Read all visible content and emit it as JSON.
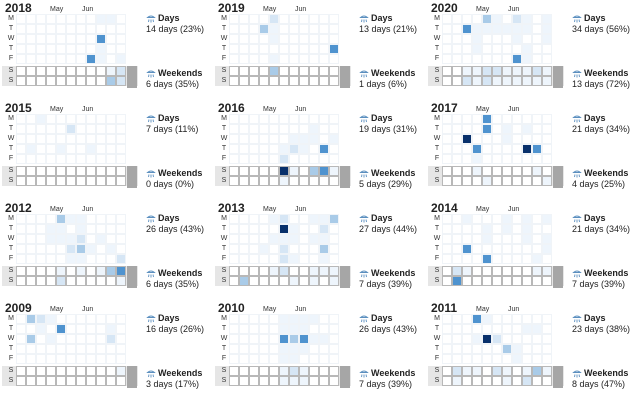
{
  "colors": {
    "empty": "#ffffff",
    "border_weekday": "#f0f4f8",
    "border_weekend": "#b8b8b8",
    "weekend_band": "#e6e6e6",
    "weekend_cap": "#a6a6a6",
    "scale": [
      "#ffffff",
      "#eef5fc",
      "#d6e6f5",
      "#a9cbe8",
      "#4f93cf",
      "#08306b"
    ]
  },
  "labels": {
    "weekday_letters": [
      "M",
      "T",
      "W",
      "T",
      "F"
    ],
    "weekend_letters": [
      "S",
      "S"
    ],
    "months": [
      "May",
      "Jun"
    ],
    "days_title": "Days",
    "weekends_title": "Weekends"
  },
  "chart_data": [
    {
      "type": "heatmap",
      "title": "2018",
      "days_text": "14 days (23%)",
      "weekends_text": "6 days (35%)",
      "weekday_cells": [
        [
          0,
          0,
          0,
          0,
          0,
          0,
          0,
          0,
          1,
          1,
          0
        ],
        [
          0,
          0,
          0,
          0,
          0,
          0,
          0,
          0,
          0,
          0,
          0
        ],
        [
          0,
          0,
          0,
          0,
          0,
          0,
          0,
          0,
          4,
          0,
          0
        ],
        [
          0,
          0,
          0,
          0,
          0,
          0,
          0,
          0,
          1,
          0,
          0
        ],
        [
          0,
          0,
          0,
          0,
          0,
          0,
          0,
          4,
          1,
          0,
          1
        ]
      ],
      "weekend_cells": [
        [
          0,
          0,
          0,
          0,
          0,
          0,
          0,
          0,
          0,
          1,
          2
        ],
        [
          0,
          0,
          0,
          0,
          0,
          0,
          0,
          0,
          0,
          3,
          2
        ]
      ]
    },
    {
      "type": "heatmap",
      "title": "2019",
      "days_text": "13 days (21%)",
      "weekends_text": "1 days (6%)",
      "weekday_cells": [
        [
          0,
          0,
          0,
          0,
          2,
          0,
          0,
          0,
          0,
          0,
          0
        ],
        [
          0,
          0,
          0,
          3,
          1,
          0,
          0,
          0,
          0,
          0,
          0
        ],
        [
          0,
          0,
          0,
          0,
          1,
          0,
          0,
          0,
          0,
          0,
          0
        ],
        [
          0,
          0,
          0,
          0,
          0,
          0,
          0,
          0,
          0,
          0,
          4
        ],
        [
          0,
          0,
          0,
          0,
          1,
          0,
          0,
          0,
          0,
          0,
          0
        ]
      ],
      "weekend_cells": [
        [
          0,
          0,
          0,
          0,
          3,
          0,
          0,
          0,
          0,
          0,
          0
        ],
        [
          0,
          0,
          0,
          0,
          0,
          0,
          0,
          0,
          0,
          0,
          0
        ]
      ]
    },
    {
      "type": "heatmap",
      "title": "2020",
      "days_text": "34 days (56%)",
      "weekends_text": "13 days (72%)",
      "weekday_cells": [
        [
          0,
          0,
          0,
          0,
          3,
          1,
          0,
          2,
          1,
          0,
          1
        ],
        [
          0,
          0,
          4,
          1,
          1,
          1,
          1,
          1,
          1,
          0,
          1
        ],
        [
          0,
          0,
          0,
          1,
          0,
          0,
          0,
          1,
          0,
          0,
          1
        ],
        [
          0,
          0,
          0,
          1,
          0,
          0,
          0,
          0,
          1,
          0,
          0
        ],
        [
          0,
          0,
          0,
          0,
          0,
          0,
          0,
          4,
          1,
          0,
          0
        ]
      ],
      "weekend_cells": [
        [
          0,
          0,
          1,
          1,
          2,
          2,
          1,
          1,
          1,
          2,
          1
        ],
        [
          0,
          0,
          2,
          1,
          2,
          1,
          1,
          1,
          1,
          1,
          1
        ]
      ]
    },
    {
      "type": "heatmap",
      "title": "2015",
      "days_text": "7 days (11%)",
      "weekends_text": "0 days (0%)",
      "weekday_cells": [
        [
          0,
          0,
          1,
          0,
          0,
          0,
          0,
          0,
          0,
          0,
          0
        ],
        [
          0,
          0,
          0,
          0,
          0,
          2,
          0,
          0,
          0,
          0,
          0
        ],
        [
          0,
          0,
          0,
          0,
          0,
          0,
          0,
          0,
          0,
          0,
          0
        ],
        [
          0,
          1,
          0,
          0,
          1,
          0,
          0,
          1,
          0,
          0,
          0
        ],
        [
          0,
          0,
          0,
          0,
          0,
          0,
          0,
          0,
          0,
          0,
          0
        ]
      ],
      "weekend_cells": [
        [
          0,
          0,
          0,
          0,
          0,
          0,
          0,
          0,
          0,
          0,
          0
        ],
        [
          0,
          0,
          0,
          0,
          0,
          0,
          0,
          0,
          0,
          0,
          0
        ]
      ]
    },
    {
      "type": "heatmap",
      "title": "2016",
      "days_text": "19 days (31%)",
      "weekends_text": "5 days (29%)",
      "weekday_cells": [
        [
          0,
          0,
          0,
          0,
          0,
          0,
          0,
          0,
          0,
          0,
          0
        ],
        [
          0,
          0,
          0,
          0,
          0,
          0,
          0,
          0,
          1,
          0,
          0
        ],
        [
          0,
          0,
          0,
          0,
          0,
          0,
          1,
          1,
          1,
          0,
          1
        ],
        [
          0,
          0,
          0,
          0,
          0,
          1,
          2,
          1,
          0,
          4,
          0
        ],
        [
          0,
          0,
          0,
          0,
          0,
          2,
          0,
          0,
          0,
          0,
          0
        ]
      ],
      "weekend_cells": [
        [
          0,
          0,
          0,
          0,
          0,
          5,
          1,
          0,
          3,
          4,
          1
        ],
        [
          0,
          0,
          0,
          0,
          0,
          1,
          0,
          0,
          0,
          0,
          0
        ]
      ]
    },
    {
      "type": "heatmap",
      "title": "2017",
      "days_text": "21 days (34%)",
      "weekends_text": "4 days (25%)",
      "weekday_cells": [
        [
          0,
          0,
          0,
          0,
          4,
          0,
          0,
          0,
          0,
          0,
          0
        ],
        [
          0,
          0,
          0,
          0,
          4,
          0,
          1,
          0,
          1,
          0,
          0
        ],
        [
          0,
          0,
          5,
          0,
          0,
          0,
          1,
          0,
          0,
          0,
          0
        ],
        [
          0,
          0,
          0,
          4,
          0,
          0,
          0,
          0,
          5,
          4,
          0
        ],
        [
          0,
          0,
          0,
          1,
          0,
          0,
          0,
          0,
          0,
          0,
          0
        ]
      ],
      "weekend_cells": [
        [
          0,
          0,
          0,
          1,
          0,
          0,
          0,
          0,
          0,
          1,
          0
        ],
        [
          0,
          0,
          0,
          0,
          1,
          0,
          0,
          0,
          0,
          0,
          1
        ]
      ]
    },
    {
      "type": "heatmap",
      "title": "2012",
      "days_text": "26 days (43%)",
      "weekends_text": "6 days (35%)",
      "weekday_cells": [
        [
          0,
          0,
          0,
          0,
          3,
          1,
          1,
          0,
          0,
          0,
          0
        ],
        [
          0,
          0,
          0,
          1,
          1,
          0,
          1,
          0,
          0,
          0,
          0
        ],
        [
          0,
          0,
          0,
          1,
          1,
          1,
          2,
          0,
          1,
          0,
          0
        ],
        [
          0,
          0,
          0,
          0,
          0,
          2,
          3,
          1,
          0,
          1,
          0
        ],
        [
          0,
          0,
          0,
          0,
          0,
          1,
          1,
          0,
          0,
          0,
          2
        ]
      ],
      "weekend_cells": [
        [
          0,
          0,
          0,
          0,
          1,
          0,
          1,
          0,
          1,
          3,
          4
        ],
        [
          0,
          0,
          0,
          0,
          2,
          0,
          0,
          0,
          0,
          0,
          1
        ]
      ]
    },
    {
      "type": "heatmap",
      "title": "2013",
      "days_text": "27 days (44%)",
      "weekends_text": "7 days (39%)",
      "weekday_cells": [
        [
          0,
          0,
          0,
          0,
          1,
          2,
          0,
          0,
          1,
          1,
          3
        ],
        [
          0,
          0,
          0,
          0,
          0,
          5,
          1,
          0,
          0,
          2,
          0
        ],
        [
          0,
          0,
          0,
          0,
          1,
          1,
          1,
          0,
          1,
          1,
          0
        ],
        [
          0,
          0,
          0,
          1,
          0,
          2,
          0,
          0,
          0,
          3,
          0
        ],
        [
          0,
          0,
          0,
          0,
          0,
          2,
          1,
          0,
          0,
          1,
          0
        ]
      ],
      "weekend_cells": [
        [
          0,
          0,
          0,
          0,
          1,
          2,
          0,
          0,
          1,
          1,
          1
        ],
        [
          0,
          3,
          0,
          0,
          0,
          0,
          1,
          0,
          1,
          0,
          1
        ]
      ]
    },
    {
      "type": "heatmap",
      "title": "2014",
      "days_text": "21 days (34%)",
      "weekends_text": "7 days (39%)",
      "weekday_cells": [
        [
          0,
          0,
          1,
          0,
          0,
          0,
          1,
          0,
          1,
          0,
          1
        ],
        [
          0,
          0,
          0,
          0,
          1,
          0,
          1,
          0,
          1,
          0,
          0
        ],
        [
          0,
          0,
          0,
          0,
          1,
          0,
          0,
          0,
          1,
          0,
          1
        ],
        [
          0,
          0,
          4,
          0,
          0,
          0,
          0,
          0,
          0,
          0,
          1
        ],
        [
          0,
          0,
          0,
          0,
          4,
          0,
          0,
          0,
          0,
          1,
          0
        ]
      ],
      "weekend_cells": [
        [
          0,
          2,
          1,
          0,
          0,
          0,
          0,
          0,
          0,
          1,
          1
        ],
        [
          0,
          4,
          0,
          0,
          0,
          0,
          0,
          0,
          0,
          0,
          0
        ]
      ]
    },
    {
      "type": "heatmap",
      "title": "2009",
      "days_text": "16 days (26%)",
      "weekends_text": "3 days (17%)",
      "weekday_cells": [
        [
          0,
          3,
          2,
          1,
          0,
          0,
          0,
          0,
          0,
          0,
          0
        ],
        [
          0,
          0,
          1,
          0,
          4,
          0,
          0,
          0,
          0,
          1,
          0
        ],
        [
          0,
          3,
          0,
          1,
          0,
          0,
          0,
          0,
          0,
          2,
          0
        ],
        [
          0,
          0,
          0,
          0,
          0,
          0,
          0,
          0,
          0,
          0,
          0
        ],
        [
          0,
          0,
          0,
          0,
          0,
          0,
          0,
          0,
          0,
          0,
          0
        ]
      ],
      "weekend_cells": [
        [
          0,
          0,
          0,
          0,
          0,
          0,
          0,
          0,
          0,
          0,
          1
        ],
        [
          0,
          0,
          0,
          0,
          0,
          0,
          0,
          0,
          0,
          0,
          0
        ]
      ]
    },
    {
      "type": "heatmap",
      "title": "2010",
      "days_text": "26 days (43%)",
      "weekends_text": "7 days (39%)",
      "weekday_cells": [
        [
          0,
          0,
          0,
          0,
          0,
          1,
          1,
          1,
          1,
          0,
          0
        ],
        [
          0,
          0,
          0,
          0,
          0,
          1,
          1,
          1,
          0,
          0,
          0
        ],
        [
          0,
          0,
          0,
          0,
          0,
          4,
          3,
          4,
          1,
          1,
          0
        ],
        [
          0,
          0,
          0,
          0,
          0,
          1,
          1,
          1,
          0,
          0,
          0
        ],
        [
          0,
          0,
          0,
          0,
          0,
          1,
          1,
          0,
          0,
          0,
          0
        ]
      ],
      "weekend_cells": [
        [
          0,
          0,
          0,
          0,
          0,
          1,
          2,
          1,
          0,
          0,
          0
        ],
        [
          0,
          0,
          0,
          0,
          0,
          1,
          1,
          1,
          0,
          0,
          0
        ]
      ]
    },
    {
      "type": "heatmap",
      "title": "2011",
      "days_text": "23 days (38%)",
      "weekends_text": "8 days (47%)",
      "weekday_cells": [
        [
          0,
          0,
          0,
          4,
          1,
          0,
          0,
          0,
          0,
          0,
          0
        ],
        [
          0,
          0,
          0,
          0,
          0,
          0,
          0,
          0,
          1,
          1,
          0
        ],
        [
          0,
          0,
          0,
          1,
          5,
          2,
          0,
          0,
          0,
          0,
          0
        ],
        [
          0,
          0,
          0,
          0,
          0,
          0,
          3,
          1,
          0,
          0,
          0
        ],
        [
          0,
          0,
          0,
          0,
          0,
          0,
          0,
          1,
          0,
          0,
          0
        ]
      ],
      "weekend_cells": [
        [
          0,
          2,
          1,
          1,
          0,
          2,
          1,
          0,
          1,
          3,
          1
        ],
        [
          0,
          1,
          0,
          0,
          0,
          0,
          1,
          0,
          2,
          0,
          0
        ]
      ]
    }
  ]
}
